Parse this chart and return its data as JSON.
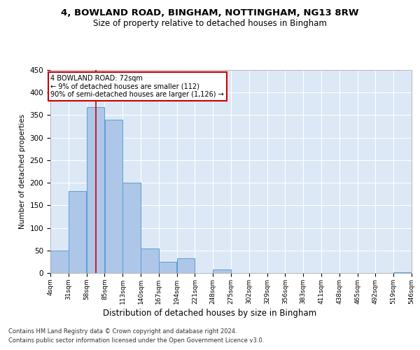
{
  "title_line1": "4, BOWLAND ROAD, BINGHAM, NOTTINGHAM, NG13 8RW",
  "title_line2": "Size of property relative to detached houses in Bingham",
  "xlabel": "Distribution of detached houses by size in Bingham",
  "ylabel": "Number of detached properties",
  "bar_color": "#aec6e8",
  "bar_edge_color": "#5a9fd4",
  "background_color": "#dce8f5",
  "grid_color": "white",
  "annotation_box_color": "#cc0000",
  "annotation_text": "4 BOWLAND ROAD: 72sqm\n← 9% of detached houses are smaller (112)\n90% of semi-detached houses are larger (1,126) →",
  "vline_x": 72,
  "vline_color": "#cc0000",
  "footer_line1": "Contains HM Land Registry data © Crown copyright and database right 2024.",
  "footer_line2": "Contains public sector information licensed under the Open Government Licence v3.0.",
  "bin_edges": [
    4,
    31,
    58,
    85,
    112,
    139,
    166,
    193,
    220,
    247,
    274,
    301,
    328,
    355,
    382,
    409,
    436,
    463,
    490,
    517,
    544
  ],
  "bin_labels": [
    "4sqm",
    "31sqm",
    "58sqm",
    "85sqm",
    "113sqm",
    "140sqm",
    "167sqm",
    "194sqm",
    "221sqm",
    "248sqm",
    "275sqm",
    "302sqm",
    "329sqm",
    "356sqm",
    "383sqm",
    "411sqm",
    "438sqm",
    "465sqm",
    "492sqm",
    "519sqm",
    "546sqm"
  ],
  "bar_heights": [
    50,
    182,
    367,
    340,
    200,
    55,
    25,
    32,
    0,
    7,
    0,
    0,
    0,
    0,
    0,
    0,
    0,
    0,
    0,
    2
  ],
  "ylim": [
    0,
    450
  ],
  "yticks": [
    0,
    50,
    100,
    150,
    200,
    250,
    300,
    350,
    400,
    450
  ]
}
